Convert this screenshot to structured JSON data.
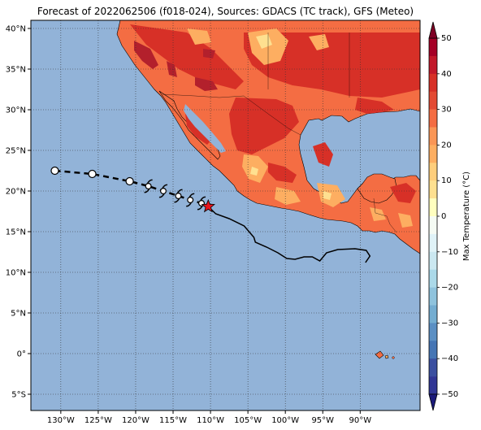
{
  "title": "Forecast of 2022062506 (f018-024), Sources: GDACS (TC track), GFS (Meteo)",
  "map": {
    "lon_range": [
      -134,
      -82
    ],
    "lat_range": [
      -7,
      41
    ],
    "ocean_color": "#92b3d8",
    "lat_ticks": [
      {
        "value": 40,
        "label": "40°N"
      },
      {
        "value": 35,
        "label": "35°N"
      },
      {
        "value": 30,
        "label": "30°N"
      },
      {
        "value": 25,
        "label": "25°N"
      },
      {
        "value": 20,
        "label": "20°N"
      },
      {
        "value": 15,
        "label": "15°N"
      },
      {
        "value": 10,
        "label": "10°N"
      },
      {
        "value": 5,
        "label": "5°N"
      },
      {
        "value": 0,
        "label": "0°"
      },
      {
        "value": -5,
        "label": "5°S"
      }
    ],
    "lon_ticks": [
      {
        "value": -130,
        "label": "130°W"
      },
      {
        "value": -125,
        "label": "125°W"
      },
      {
        "value": -120,
        "label": "120°W"
      },
      {
        "value": -115,
        "label": "115°W"
      },
      {
        "value": -110,
        "label": "110°W"
      },
      {
        "value": -105,
        "label": "105°W"
      },
      {
        "value": -100,
        "label": "100°W"
      },
      {
        "value": -95,
        "label": "95°W"
      },
      {
        "value": -90,
        "label": "90°W"
      }
    ],
    "track_forecast": [
      {
        "lon": -130.8,
        "lat": 22.5,
        "symbol": "circle"
      },
      {
        "lon": -125.8,
        "lat": 22.1,
        "symbol": "circle"
      },
      {
        "lon": -120.8,
        "lat": 21.2,
        "symbol": "circle"
      },
      {
        "lon": -118.3,
        "lat": 20.6,
        "symbol": "storm"
      },
      {
        "lon": -116.3,
        "lat": 20.0,
        "symbol": "storm"
      },
      {
        "lon": -114.3,
        "lat": 19.4,
        "symbol": "storm"
      },
      {
        "lon": -112.7,
        "lat": 18.9,
        "symbol": "storm"
      },
      {
        "lon": -111.2,
        "lat": 18.5,
        "symbol": "storm"
      }
    ],
    "current_position": {
      "lon": -110.3,
      "lat": 18.1,
      "symbol": "star",
      "color": "#e8141c"
    },
    "track_past": [
      [
        -110.3,
        18.1
      ],
      [
        -109.3,
        17.2
      ],
      [
        -107.5,
        16.6
      ],
      [
        -105.5,
        15.7
      ],
      [
        -104.2,
        14.3
      ],
      [
        -104.0,
        13.7
      ],
      [
        -102.5,
        13.1
      ],
      [
        -101.0,
        12.4
      ],
      [
        -99.8,
        11.7
      ],
      [
        -98.7,
        11.6
      ],
      [
        -97.5,
        11.9
      ],
      [
        -96.4,
        11.9
      ],
      [
        -95.4,
        11.4
      ],
      [
        -94.5,
        12.4
      ],
      [
        -93.0,
        12.8
      ],
      [
        -90.7,
        12.9
      ],
      [
        -89.2,
        12.7
      ],
      [
        -88.7,
        12.0
      ],
      [
        -89.3,
        11.2
      ]
    ]
  },
  "colorbar": {
    "label": "Max Temperature (°C)",
    "range": [
      -50,
      50
    ],
    "ticks": [
      {
        "value": 50,
        "label": "50"
      },
      {
        "value": 40,
        "label": "40"
      },
      {
        "value": 30,
        "label": "30"
      },
      {
        "value": 20,
        "label": "20"
      },
      {
        "value": 10,
        "label": "10"
      },
      {
        "value": 0,
        "label": "0"
      },
      {
        "value": -10,
        "label": "−10"
      },
      {
        "value": -20,
        "label": "−20"
      },
      {
        "value": -30,
        "label": "−30"
      },
      {
        "value": -40,
        "label": "−40"
      },
      {
        "value": -50,
        "label": "−50"
      }
    ],
    "bands": [
      {
        "from": 45,
        "to": 50,
        "color": "#a50026"
      },
      {
        "from": 40,
        "to": 45,
        "color": "#c2182a"
      },
      {
        "from": 35,
        "to": 40,
        "color": "#d73027"
      },
      {
        "from": 30,
        "to": 35,
        "color": "#e34a33"
      },
      {
        "from": 25,
        "to": 30,
        "color": "#f46d43"
      },
      {
        "from": 20,
        "to": 25,
        "color": "#fa9656"
      },
      {
        "from": 15,
        "to": 20,
        "color": "#fdae61"
      },
      {
        "from": 10,
        "to": 15,
        "color": "#fece7c"
      },
      {
        "from": 5,
        "to": 10,
        "color": "#fee090"
      },
      {
        "from": 0,
        "to": 5,
        "color": "#ffffbf"
      },
      {
        "from": -5,
        "to": 0,
        "color": "#f5fbf4"
      },
      {
        "from": -10,
        "to": -5,
        "color": "#e0f3f8"
      },
      {
        "from": -15,
        "to": -10,
        "color": "#cbe8f1"
      },
      {
        "from": -20,
        "to": -15,
        "color": "#abd9e9"
      },
      {
        "from": -25,
        "to": -20,
        "color": "#8fc3dd"
      },
      {
        "from": -30,
        "to": -25,
        "color": "#74add1"
      },
      {
        "from": -35,
        "to": -30,
        "color": "#5b8fc3"
      },
      {
        "from": -40,
        "to": -35,
        "color": "#4575b4"
      },
      {
        "from": -45,
        "to": -40,
        "color": "#3b4fa0"
      },
      {
        "from": -50,
        "to": -45,
        "color": "#313695"
      }
    ],
    "over_color": "#7f0025",
    "under_color": "#1c1a7a"
  }
}
